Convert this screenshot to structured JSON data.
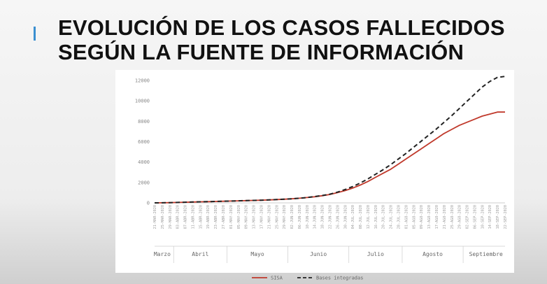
{
  "title_lines": [
    "EVOLUCIÓN DE LOS CASOS FALLECIDOS",
    "SEGÚN LA FUENTE DE INFORMACIÓN"
  ],
  "colors": {
    "accent": "#3a8fd0",
    "sisa": "#c0392b",
    "bases": "#222222"
  },
  "chart_data": {
    "type": "line",
    "title": "",
    "xlabel": "",
    "ylabel": "",
    "ylim": [
      0,
      12000
    ],
    "yticks": [
      0,
      2000,
      4000,
      6000,
      8000,
      10000,
      12000
    ],
    "y_tick_labels": [
      "0",
      "2000",
      "4000",
      "6000",
      "8000",
      "10000",
      "12000"
    ],
    "grid": false,
    "legend": "bottom",
    "x_dates": [
      "21-MAR-2020",
      "25-MAR-2020",
      "29-MAR-2020",
      "03-ABR-2020",
      "07-ABR-2020",
      "11-ABR-2020",
      "15-ABR-2020",
      "19-ABR-2020",
      "23-ABR-2020",
      "27-ABR-2020",
      "01-MAY-2020",
      "05-MAY-2020",
      "09-MAY-2020",
      "13-MAY-2020",
      "17-MAY-2020",
      "21-MAY-2020",
      "25-MAY-2020",
      "29-MAY-2020",
      "02-JUN-2020",
      "06-JUN-2020",
      "10-JUN-2020",
      "14-JUN-2020",
      "18-JUN-2020",
      "22-JUN-2020",
      "26-JUN-2020",
      "30-JUN-2020",
      "04-JUL-2020",
      "08-JUL-2020",
      "12-JUL-2020",
      "16-JUL-2020",
      "20-JUL-2020",
      "24-JUL-2020",
      "28-JUL-2020",
      "01-AGO-2020",
      "05-AGO-2020",
      "09-AGO-2020",
      "13-AGO-2020",
      "17-AGO-2020",
      "21-AGO-2020",
      "25-AGO-2020",
      "29-AGO-2020",
      "02-SEP-2020",
      "06-SEP-2020",
      "10-SEP-2020",
      "14-SEP-2020",
      "18-SEP-2020",
      "22-SEP-2020"
    ],
    "months": [
      {
        "label": "Marzo",
        "from": 0,
        "to": 2
      },
      {
        "label": "Abril",
        "from": 3,
        "to": 9
      },
      {
        "label": "Mayo",
        "from": 10,
        "to": 17
      },
      {
        "label": "Junio",
        "from": 18,
        "to": 25
      },
      {
        "label": "Julio",
        "from": 26,
        "to": 32
      },
      {
        "label": "Agosto",
        "from": 33,
        "to": 40
      },
      {
        "label": "Septiembre",
        "from": 41,
        "to": 46
      }
    ],
    "series": [
      {
        "name": "SISA",
        "style": "solid",
        "values": [
          0,
          10,
          20,
          40,
          60,
          80,
          100,
          120,
          140,
          160,
          180,
          200,
          220,
          240,
          260,
          290,
          320,
          360,
          400,
          450,
          520,
          600,
          700,
          820,
          1000,
          1200,
          1450,
          1750,
          2100,
          2500,
          2900,
          3300,
          3800,
          4300,
          4800,
          5300,
          5800,
          6300,
          6800,
          7200,
          7600,
          7900,
          8200,
          8500,
          8700,
          8900,
          8900
        ]
      },
      {
        "name": "Bases integradas",
        "style": "dashed",
        "values": [
          0,
          10,
          20,
          40,
          60,
          80,
          100,
          120,
          140,
          160,
          180,
          200,
          220,
          240,
          260,
          290,
          320,
          360,
          400,
          450,
          520,
          620,
          720,
          850,
          1050,
          1300,
          1600,
          1950,
          2350,
          2800,
          3250,
          3750,
          4300,
          4850,
          5450,
          6050,
          6650,
          7250,
          7900,
          8550,
          9250,
          9950,
          10650,
          11350,
          11900,
          12300,
          12400
        ]
      }
    ]
  }
}
